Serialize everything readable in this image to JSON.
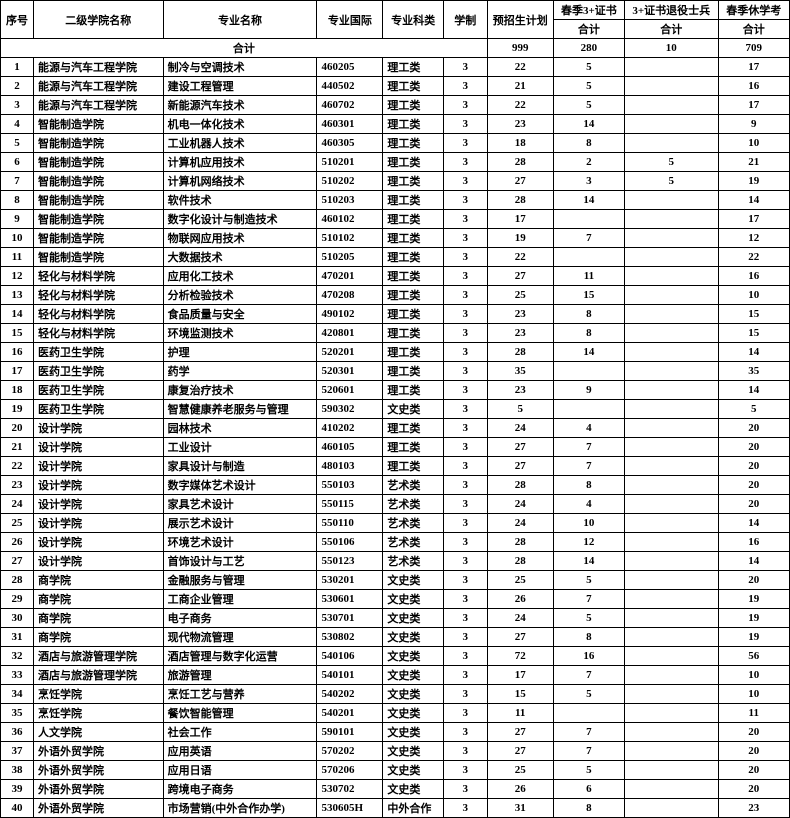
{
  "headers": {
    "row1": [
      "序号",
      "二级学院名称",
      "专业名称",
      "专业国际",
      "专业科类",
      "学制",
      "预招生计划",
      "春季3+证书",
      "3+证书退役士兵",
      "春季休学考"
    ],
    "row2_right": [
      "合计",
      "合计",
      "合计"
    ],
    "total_label": "合计",
    "totals": [
      "999",
      "280",
      "10",
      "709"
    ]
  },
  "rows": [
    {
      "idx": "1",
      "dept": "能源与汽车工程学院",
      "major": "制冷与空调技术",
      "code": "460205",
      "cat": "理工类",
      "dur": "3",
      "plan": "22",
      "n1": "5",
      "n2": "",
      "n3": "17"
    },
    {
      "idx": "2",
      "dept": "能源与汽车工程学院",
      "major": "建设工程管理",
      "code": "440502",
      "cat": "理工类",
      "dur": "3",
      "plan": "21",
      "n1": "5",
      "n2": "",
      "n3": "16"
    },
    {
      "idx": "3",
      "dept": "能源与汽车工程学院",
      "major": "新能源汽车技术",
      "code": "460702",
      "cat": "理工类",
      "dur": "3",
      "plan": "22",
      "n1": "5",
      "n2": "",
      "n3": "17"
    },
    {
      "idx": "4",
      "dept": "智能制造学院",
      "major": "机电一体化技术",
      "code": "460301",
      "cat": "理工类",
      "dur": "3",
      "plan": "23",
      "n1": "14",
      "n2": "",
      "n3": "9"
    },
    {
      "idx": "5",
      "dept": "智能制造学院",
      "major": "工业机器人技术",
      "code": "460305",
      "cat": "理工类",
      "dur": "3",
      "plan": "18",
      "n1": "8",
      "n2": "",
      "n3": "10"
    },
    {
      "idx": "6",
      "dept": "智能制造学院",
      "major": "计算机应用技术",
      "code": "510201",
      "cat": "理工类",
      "dur": "3",
      "plan": "28",
      "n1": "2",
      "n2": "5",
      "n3": "21"
    },
    {
      "idx": "7",
      "dept": "智能制造学院",
      "major": "计算机网络技术",
      "code": "510202",
      "cat": "理工类",
      "dur": "3",
      "plan": "27",
      "n1": "3",
      "n2": "5",
      "n3": "19"
    },
    {
      "idx": "8",
      "dept": "智能制造学院",
      "major": "软件技术",
      "code": "510203",
      "cat": "理工类",
      "dur": "3",
      "plan": "28",
      "n1": "14",
      "n2": "",
      "n3": "14"
    },
    {
      "idx": "9",
      "dept": "智能制造学院",
      "major": "数字化设计与制造技术",
      "code": "460102",
      "cat": "理工类",
      "dur": "3",
      "plan": "17",
      "n1": "",
      "n2": "",
      "n3": "17"
    },
    {
      "idx": "10",
      "dept": "智能制造学院",
      "major": "物联网应用技术",
      "code": "510102",
      "cat": "理工类",
      "dur": "3",
      "plan": "19",
      "n1": "7",
      "n2": "",
      "n3": "12"
    },
    {
      "idx": "11",
      "dept": "智能制造学院",
      "major": "大数据技术",
      "code": "510205",
      "cat": "理工类",
      "dur": "3",
      "plan": "22",
      "n1": "",
      "n2": "",
      "n3": "22"
    },
    {
      "idx": "12",
      "dept": "轻化与材料学院",
      "major": "应用化工技术",
      "code": "470201",
      "cat": "理工类",
      "dur": "3",
      "plan": "27",
      "n1": "11",
      "n2": "",
      "n3": "16"
    },
    {
      "idx": "13",
      "dept": "轻化与材料学院",
      "major": "分析检验技术",
      "code": "470208",
      "cat": "理工类",
      "dur": "3",
      "plan": "25",
      "n1": "15",
      "n2": "",
      "n3": "10"
    },
    {
      "idx": "14",
      "dept": "轻化与材料学院",
      "major": "食品质量与安全",
      "code": "490102",
      "cat": "理工类",
      "dur": "3",
      "plan": "23",
      "n1": "8",
      "n2": "",
      "n3": "15"
    },
    {
      "idx": "15",
      "dept": "轻化与材料学院",
      "major": "环境监测技术",
      "code": "420801",
      "cat": "理工类",
      "dur": "3",
      "plan": "23",
      "n1": "8",
      "n2": "",
      "n3": "15"
    },
    {
      "idx": "16",
      "dept": "医药卫生学院",
      "major": "护理",
      "code": "520201",
      "cat": "理工类",
      "dur": "3",
      "plan": "28",
      "n1": "14",
      "n2": "",
      "n3": "14"
    },
    {
      "idx": "17",
      "dept": "医药卫生学院",
      "major": "药学",
      "code": "520301",
      "cat": "理工类",
      "dur": "3",
      "plan": "35",
      "n1": "",
      "n2": "",
      "n3": "35"
    },
    {
      "idx": "18",
      "dept": "医药卫生学院",
      "major": "康复治疗技术",
      "code": "520601",
      "cat": "理工类",
      "dur": "3",
      "plan": "23",
      "n1": "9",
      "n2": "",
      "n3": "14"
    },
    {
      "idx": "19",
      "dept": "医药卫生学院",
      "major": "智慧健康养老服务与管理",
      "code": "590302",
      "cat": "文史类",
      "dur": "3",
      "plan": "5",
      "n1": "",
      "n2": "",
      "n3": "5"
    },
    {
      "idx": "20",
      "dept": "设计学院",
      "major": "园林技术",
      "code": "410202",
      "cat": "理工类",
      "dur": "3",
      "plan": "24",
      "n1": "4",
      "n2": "",
      "n3": "20"
    },
    {
      "idx": "21",
      "dept": "设计学院",
      "major": "工业设计",
      "code": "460105",
      "cat": "理工类",
      "dur": "3",
      "plan": "27",
      "n1": "7",
      "n2": "",
      "n3": "20"
    },
    {
      "idx": "22",
      "dept": "设计学院",
      "major": "家具设计与制造",
      "code": "480103",
      "cat": "理工类",
      "dur": "3",
      "plan": "27",
      "n1": "7",
      "n2": "",
      "n3": "20"
    },
    {
      "idx": "23",
      "dept": "设计学院",
      "major": "数字媒体艺术设计",
      "code": "550103",
      "cat": "艺术类",
      "dur": "3",
      "plan": "28",
      "n1": "8",
      "n2": "",
      "n3": "20"
    },
    {
      "idx": "24",
      "dept": "设计学院",
      "major": "家具艺术设计",
      "code": "550115",
      "cat": "艺术类",
      "dur": "3",
      "plan": "24",
      "n1": "4",
      "n2": "",
      "n3": "20"
    },
    {
      "idx": "25",
      "dept": "设计学院",
      "major": "展示艺术设计",
      "code": "550110",
      "cat": "艺术类",
      "dur": "3",
      "plan": "24",
      "n1": "10",
      "n2": "",
      "n3": "14"
    },
    {
      "idx": "26",
      "dept": "设计学院",
      "major": "环境艺术设计",
      "code": "550106",
      "cat": "艺术类",
      "dur": "3",
      "plan": "28",
      "n1": "12",
      "n2": "",
      "n3": "16"
    },
    {
      "idx": "27",
      "dept": "设计学院",
      "major": "首饰设计与工艺",
      "code": "550123",
      "cat": "艺术类",
      "dur": "3",
      "plan": "28",
      "n1": "14",
      "n2": "",
      "n3": "14"
    },
    {
      "idx": "28",
      "dept": "商学院",
      "major": "金融服务与管理",
      "code": "530201",
      "cat": "文史类",
      "dur": "3",
      "plan": "25",
      "n1": "5",
      "n2": "",
      "n3": "20"
    },
    {
      "idx": "29",
      "dept": "商学院",
      "major": "工商企业管理",
      "code": "530601",
      "cat": "文史类",
      "dur": "3",
      "plan": "26",
      "n1": "7",
      "n2": "",
      "n3": "19"
    },
    {
      "idx": "30",
      "dept": "商学院",
      "major": "电子商务",
      "code": "530701",
      "cat": "文史类",
      "dur": "3",
      "plan": "24",
      "n1": "5",
      "n2": "",
      "n3": "19"
    },
    {
      "idx": "31",
      "dept": "商学院",
      "major": "现代物流管理",
      "code": "530802",
      "cat": "文史类",
      "dur": "3",
      "plan": "27",
      "n1": "8",
      "n2": "",
      "n3": "19"
    },
    {
      "idx": "32",
      "dept": "酒店与旅游管理学院",
      "major": "酒店管理与数字化运营",
      "code": "540106",
      "cat": "文史类",
      "dur": "3",
      "plan": "72",
      "n1": "16",
      "n2": "",
      "n3": "56"
    },
    {
      "idx": "33",
      "dept": "酒店与旅游管理学院",
      "major": "旅游管理",
      "code": "540101",
      "cat": "文史类",
      "dur": "3",
      "plan": "17",
      "n1": "7",
      "n2": "",
      "n3": "10"
    },
    {
      "idx": "34",
      "dept": "烹饪学院",
      "major": "烹饪工艺与营养",
      "code": "540202",
      "cat": "文史类",
      "dur": "3",
      "plan": "15",
      "n1": "5",
      "n2": "",
      "n3": "10"
    },
    {
      "idx": "35",
      "dept": "烹饪学院",
      "major": "餐饮智能管理",
      "code": "540201",
      "cat": "文史类",
      "dur": "3",
      "plan": "11",
      "n1": "",
      "n2": "",
      "n3": "11"
    },
    {
      "idx": "36",
      "dept": "人文学院",
      "major": "社会工作",
      "code": "590101",
      "cat": "文史类",
      "dur": "3",
      "plan": "27",
      "n1": "7",
      "n2": "",
      "n3": "20"
    },
    {
      "idx": "37",
      "dept": "外语外贸学院",
      "major": "应用英语",
      "code": "570202",
      "cat": "文史类",
      "dur": "3",
      "plan": "27",
      "n1": "7",
      "n2": "",
      "n3": "20"
    },
    {
      "idx": "38",
      "dept": "外语外贸学院",
      "major": "应用日语",
      "code": "570206",
      "cat": "文史类",
      "dur": "3",
      "plan": "25",
      "n1": "5",
      "n2": "",
      "n3": "20"
    },
    {
      "idx": "39",
      "dept": "外语外贸学院",
      "major": "跨境电子商务",
      "code": "530702",
      "cat": "文史类",
      "dur": "3",
      "plan": "26",
      "n1": "6",
      "n2": "",
      "n3": "20"
    },
    {
      "idx": "40",
      "dept": "外语外贸学院",
      "major": "市场营销(中外合作办学)",
      "code": "530605H",
      "cat": "中外合作",
      "dur": "3",
      "plan": "31",
      "n1": "8",
      "n2": "",
      "n3": "23"
    }
  ]
}
